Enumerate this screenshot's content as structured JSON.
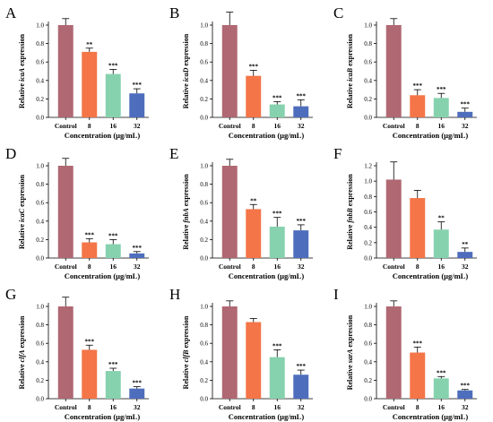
{
  "colors": {
    "control": "#b06872",
    "c8": "#f47548",
    "c16": "#86d2ae",
    "c32": "#4e6ebd"
  },
  "chart_data": [
    {
      "type": "bar",
      "letter": "A",
      "ylabel": "Relative icaA expression",
      "ylabel_prefix": "Relative ",
      "gene": "icaA",
      "ylabel_suffix": " expression",
      "xlabel": "Concentration (μg/mL)",
      "categories": [
        "Control",
        "8",
        "16",
        "32"
      ],
      "values": [
        1.0,
        0.71,
        0.47,
        0.26
      ],
      "errors": [
        0.07,
        0.04,
        0.05,
        0.05
      ],
      "significance": [
        "",
        "**",
        "***",
        "***"
      ],
      "ylim": [
        0,
        1.0
      ],
      "ticks": [
        "0.0",
        "0.2",
        "0.4",
        "0.6",
        "0.8",
        "1.0"
      ]
    },
    {
      "type": "bar",
      "letter": "B",
      "ylabel": "Relative icaD expression",
      "ylabel_prefix": "Relative ",
      "gene": "icaD",
      "ylabel_suffix": " expression",
      "xlabel": "Concentration (μg/mL)",
      "categories": [
        "Control",
        "8",
        "16",
        "32"
      ],
      "values": [
        1.0,
        0.45,
        0.14,
        0.12
      ],
      "errors": [
        0.14,
        0.06,
        0.03,
        0.07
      ],
      "significance": [
        "",
        "***",
        "***",
        "***"
      ],
      "ylim": [
        0,
        1.0
      ],
      "ticks": [
        "0.0",
        "0.2",
        "0.4",
        "0.6",
        "0.8",
        "1.0"
      ]
    },
    {
      "type": "bar",
      "letter": "C",
      "ylabel": "Relative icaB expression",
      "ylabel_prefix": "Relative ",
      "gene": "icaB",
      "ylabel_suffix": " expression",
      "xlabel": "Concentration (μg/mL)",
      "categories": [
        "Control",
        "8",
        "16",
        "32"
      ],
      "values": [
        1.0,
        0.24,
        0.21,
        0.06
      ],
      "errors": [
        0.07,
        0.06,
        0.05,
        0.04
      ],
      "significance": [
        "",
        "***",
        "***",
        "***"
      ],
      "ylim": [
        0,
        1.0
      ],
      "ticks": [
        "0.0",
        "0.2",
        "0.4",
        "0.6",
        "0.8",
        "1.0"
      ]
    },
    {
      "type": "bar",
      "letter": "D",
      "ylabel": "Relative icaC expression",
      "ylabel_prefix": "Relative ",
      "gene": "icaC",
      "ylabel_suffix": " expression",
      "xlabel": "Concentration (μg/mL)",
      "categories": [
        "Control",
        "8",
        "16",
        "32"
      ],
      "values": [
        1.0,
        0.17,
        0.15,
        0.05
      ],
      "errors": [
        0.08,
        0.04,
        0.05,
        0.02
      ],
      "significance": [
        "",
        "***",
        "***",
        "***"
      ],
      "ylim": [
        0,
        1.0
      ],
      "ticks": [
        "0.0",
        "0.2",
        "0.4",
        "0.6",
        "0.8",
        "1.0"
      ]
    },
    {
      "type": "bar",
      "letter": "E",
      "ylabel": "Relative fnbA expression",
      "ylabel_prefix": "Relative ",
      "gene": "fnbA",
      "ylabel_suffix": " expression",
      "xlabel": "Concentration (μg/mL)",
      "categories": [
        "Control",
        "8",
        "16",
        "32"
      ],
      "values": [
        1.0,
        0.53,
        0.34,
        0.3
      ],
      "errors": [
        0.07,
        0.05,
        0.1,
        0.06
      ],
      "significance": [
        "",
        "**",
        "***",
        "***"
      ],
      "ylim": [
        0,
        1.0
      ],
      "ticks": [
        "0.0",
        "0.2",
        "0.4",
        "0.6",
        "0.8",
        "1.0"
      ]
    },
    {
      "type": "bar",
      "letter": "F",
      "ylabel": "Relative fnbB expression",
      "ylabel_prefix": "Relative ",
      "gene": "fnbB",
      "ylabel_suffix": " expression",
      "xlabel": "Concentration (μg/mL)",
      "categories": [
        "Control",
        "8",
        "16",
        "32"
      ],
      "values": [
        1.02,
        0.78,
        0.37,
        0.08
      ],
      "errors": [
        0.23,
        0.1,
        0.1,
        0.05
      ],
      "significance": [
        "",
        "",
        "**",
        "**"
      ],
      "ylim": [
        0,
        1.2
      ],
      "ticks": [
        "0.0",
        "0.2",
        "0.4",
        "0.6",
        "0.8",
        "1.0",
        "1.2"
      ]
    },
    {
      "type": "bar",
      "letter": "G",
      "ylabel": "Relative clfA expression",
      "ylabel_prefix": "Relative ",
      "gene": "clfA",
      "ylabel_suffix": " expression",
      "xlabel": "Concentration (μg/mL)",
      "categories": [
        "Control",
        "8",
        "16",
        "32"
      ],
      "values": [
        1.0,
        0.53,
        0.3,
        0.11
      ],
      "errors": [
        0.1,
        0.05,
        0.03,
        0.02
      ],
      "significance": [
        "",
        "***",
        "***",
        "***"
      ],
      "ylim": [
        0,
        1.0
      ],
      "ticks": [
        "0.0",
        "0.2",
        "0.4",
        "0.6",
        "0.8",
        "1.0"
      ]
    },
    {
      "type": "bar",
      "letter": "H",
      "ylabel": "Relative clfB expression",
      "ylabel_prefix": "Relative ",
      "gene": "clfB",
      "ylabel_suffix": " expression",
      "xlabel": "Concentration (μg/mL)",
      "categories": [
        "Control",
        "8",
        "16",
        "32"
      ],
      "values": [
        1.0,
        0.83,
        0.45,
        0.26
      ],
      "errors": [
        0.06,
        0.04,
        0.08,
        0.05
      ],
      "significance": [
        "",
        "",
        "***",
        "***"
      ],
      "ylim": [
        0,
        1.0
      ],
      "ticks": [
        "0.0",
        "0.2",
        "0.4",
        "0.6",
        "0.8",
        "1.0"
      ]
    },
    {
      "type": "bar",
      "letter": "I",
      "ylabel": "Relative sarA expression",
      "ylabel_prefix": "Relative ",
      "gene": "sarA",
      "ylabel_suffix": " expression",
      "xlabel": "Concentration (μg/mL)",
      "categories": [
        "Control",
        "8",
        "16",
        "32"
      ],
      "values": [
        1.0,
        0.5,
        0.22,
        0.09
      ],
      "errors": [
        0.06,
        0.06,
        0.02,
        0.01
      ],
      "significance": [
        "",
        "***",
        "***",
        "***"
      ],
      "ylim": [
        0,
        1.0
      ],
      "ticks": [
        "0.0",
        "0.2",
        "0.4",
        "0.6",
        "0.8",
        "1.0"
      ]
    }
  ]
}
